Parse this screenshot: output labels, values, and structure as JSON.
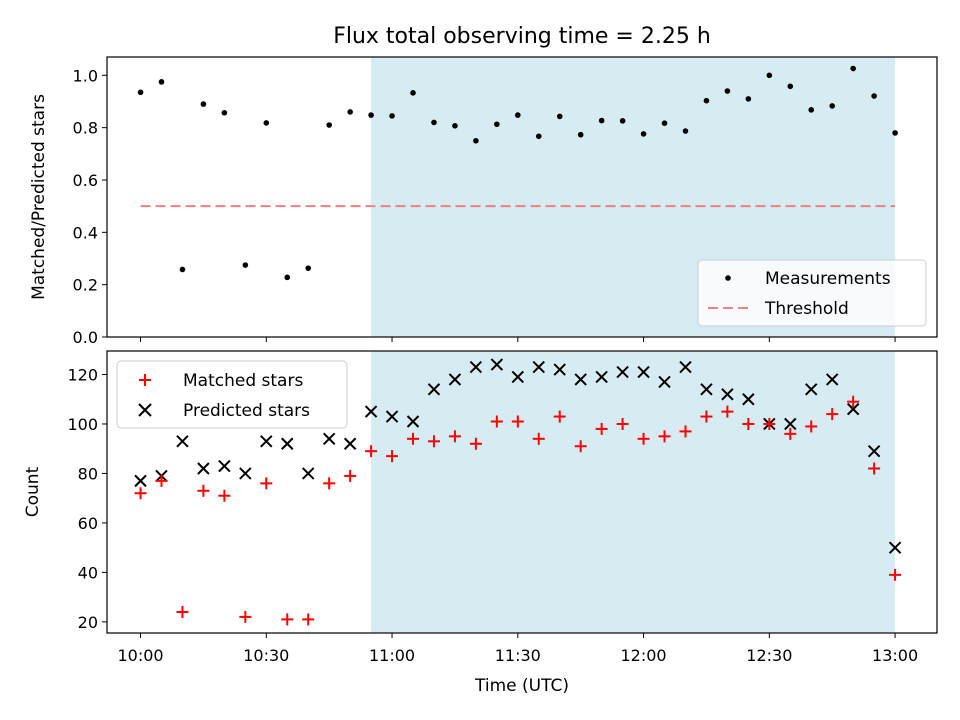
{
  "title": "Flux total observing time = 2.25 h",
  "xlabel": "Time (UTC)",
  "x_ticks": [
    "10:00",
    "10:30",
    "11:00",
    "11:30",
    "12:00",
    "12:30",
    "13:00"
  ],
  "colors": {
    "highlight": "#add8e6",
    "measurements": "#000000",
    "threshold": "#f08080",
    "matched": "#ff0000",
    "predicted": "#000000"
  },
  "chart_data": [
    {
      "type": "scatter",
      "ylabel": "Matched/Predicted stars",
      "xlim": [
        "09:52",
        "13:10"
      ],
      "ylim": [
        0,
        1.07
      ],
      "y_ticks": [
        "0.0",
        "0.2",
        "0.4",
        "0.6",
        "0.8",
        "1.0"
      ],
      "highlight_span": [
        "10:55",
        "13:00"
      ],
      "legend_position": "lower-right",
      "series": [
        {
          "name": "Measurements",
          "x": [
            "10:00",
            "10:05",
            "10:10",
            "10:15",
            "10:20",
            "10:25",
            "10:30",
            "10:35",
            "10:40",
            "10:45",
            "10:50",
            "10:55",
            "11:00",
            "11:05",
            "11:10",
            "11:15",
            "11:20",
            "11:25",
            "11:30",
            "11:35",
            "11:40",
            "11:45",
            "11:50",
            "11:55",
            "12:00",
            "12:05",
            "12:10",
            "12:15",
            "12:20",
            "12:25",
            "12:30",
            "12:35",
            "12:40",
            "12:45",
            "12:50",
            "12:55",
            "13:00"
          ],
          "y": [
            0.935,
            0.975,
            0.258,
            0.89,
            0.857,
            0.275,
            0.818,
            0.228,
            0.263,
            0.81,
            0.86,
            0.848,
            0.845,
            0.933,
            0.82,
            0.807,
            0.75,
            0.813,
            0.848,
            0.767,
            0.843,
            0.773,
            0.827,
            0.826,
            0.776,
            0.817,
            0.787,
            0.903,
            0.94,
            0.91,
            1.0,
            0.958,
            0.868,
            0.883,
            1.026,
            0.921,
            0.78
          ]
        }
      ],
      "threshold": {
        "name": "Threshold",
        "y": 0.5,
        "x_range": [
          "10:00",
          "13:00"
        ]
      }
    },
    {
      "type": "scatter",
      "ylabel": "Count",
      "ylim": [
        15.5,
        129.5
      ],
      "y_ticks": [
        "20",
        "40",
        "60",
        "80",
        "100",
        "120"
      ],
      "legend_position": "upper-left",
      "x": [
        "10:00",
        "10:05",
        "10:10",
        "10:15",
        "10:20",
        "10:25",
        "10:30",
        "10:35",
        "10:40",
        "10:45",
        "10:50",
        "10:55",
        "11:00",
        "11:05",
        "11:10",
        "11:15",
        "11:20",
        "11:25",
        "11:30",
        "11:35",
        "11:40",
        "11:45",
        "11:50",
        "11:55",
        "12:00",
        "12:05",
        "12:10",
        "12:15",
        "12:20",
        "12:25",
        "12:30",
        "12:35",
        "12:40",
        "12:45",
        "12:50",
        "12:55",
        "13:00"
      ],
      "series": [
        {
          "name": "Matched stars",
          "marker": "plus",
          "values": [
            72,
            77,
            24,
            73,
            71,
            22,
            76,
            21,
            21,
            76,
            79,
            89,
            87,
            94,
            93,
            95,
            92,
            101,
            101,
            94,
            103,
            91,
            98,
            100,
            94,
            95,
            97,
            103,
            105,
            100,
            100,
            96,
            99,
            104,
            109,
            82,
            39
          ]
        },
        {
          "name": "Predicted stars",
          "marker": "x",
          "values": [
            77,
            79,
            93,
            82,
            83,
            80,
            93,
            92,
            80,
            94,
            92,
            105,
            103,
            101,
            114,
            118,
            123,
            124,
            119,
            123,
            122,
            118,
            119,
            121,
            121,
            117,
            123,
            114,
            112,
            110,
            100,
            100,
            114,
            118,
            106,
            89,
            50
          ]
        }
      ]
    }
  ]
}
